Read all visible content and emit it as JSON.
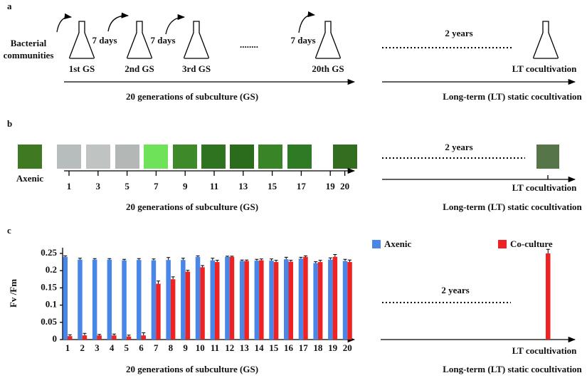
{
  "panel_a": {
    "label": "a",
    "source": [
      "Bacterial",
      "communities"
    ],
    "flasks": [
      "1st GS",
      "2nd GS",
      "3rd GS",
      "20th GS"
    ],
    "intervals": [
      "7 days",
      "7 days",
      "7 days"
    ],
    "ellipsis": "........",
    "gap": "2 years",
    "lt": "LT cocultivation",
    "caption_left": "20 generations of subculture (GS)",
    "caption_right": "Long-term (LT) static cocultivation"
  },
  "panel_b": {
    "label": "b",
    "axenic": "Axenic",
    "ticks": [
      1,
      3,
      5,
      7,
      9,
      11,
      13,
      15,
      17,
      19,
      20
    ],
    "gap": "2 years",
    "lt": "LT cocultivation",
    "caption_left": "20 generations of subculture (GS)",
    "caption_right": "Long-term (LT) static cocultivation"
  },
  "chart_data": {
    "type": "bar",
    "panel_label": "c",
    "ylabel": "Fv /Fm",
    "categories": [
      "1",
      "2",
      "3",
      "4",
      "5",
      "6",
      "7",
      "8",
      "9",
      "10",
      "11",
      "12",
      "13",
      "14",
      "15",
      "16",
      "17",
      "18",
      "19",
      "20"
    ],
    "series": [
      {
        "name": "Axenic",
        "color": "#4a86e8",
        "values": [
          0.24,
          0.232,
          0.232,
          0.232,
          0.23,
          0.231,
          0.23,
          0.231,
          0.231,
          0.24,
          0.23,
          0.24,
          0.228,
          0.229,
          0.229,
          0.233,
          0.235,
          0.222,
          0.232,
          0.228
        ],
        "errors": [
          0.003,
          0.004,
          0.003,
          0.003,
          0.003,
          0.004,
          0.004,
          0.007,
          0.005,
          0.003,
          0.006,
          0.002,
          0.003,
          0.004,
          0.005,
          0.006,
          0.004,
          0.004,
          0.005,
          0.005
        ]
      },
      {
        "name": "Co-culture",
        "color": "#ee2222",
        "values": [
          0.01,
          0.012,
          0.012,
          0.012,
          0.009,
          0.012,
          0.162,
          0.175,
          0.197,
          0.21,
          0.225,
          0.24,
          0.228,
          0.23,
          0.225,
          0.226,
          0.24,
          0.225,
          0.24,
          0.225
        ],
        "errors": [
          0.004,
          0.006,
          0.003,
          0.004,
          0.004,
          0.008,
          0.008,
          0.007,
          0.004,
          0.005,
          0.005,
          0.002,
          0.003,
          0.004,
          0.005,
          0.004,
          0.003,
          0.005,
          0.007,
          0.006
        ]
      }
    ],
    "lt": {
      "category": "LT cocultivation",
      "value": 0.25,
      "error": 0.012
    },
    "gap": "2 years",
    "xlabel": "20 generations of subculture (GS)",
    "xlabel_right": "Long-term (LT) static cocultivation",
    "ylim": [
      0,
      0.25
    ],
    "yticks": [
      0,
      0.05,
      0.1,
      0.15,
      0.2,
      0.25
    ]
  }
}
